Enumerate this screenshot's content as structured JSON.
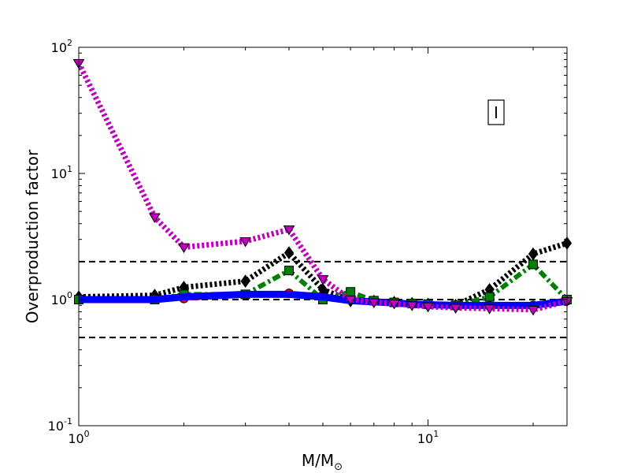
{
  "chart_data": {
    "type": "line",
    "title": "",
    "xlabel": "M/M",
    "xlabel_subscript": "⊙",
    "ylabel": "Overproduction factor",
    "xscale": "log",
    "yscale": "log",
    "xlim": [
      1,
      25
    ],
    "ylim": [
      0.1,
      100
    ],
    "x_ticks": [
      {
        "value": 1,
        "base": "10",
        "exp": "0"
      },
      {
        "value": 10,
        "base": "10",
        "exp": "1"
      }
    ],
    "y_ticks": [
      {
        "value": 0.1,
        "base": "10",
        "exp": "-1"
      },
      {
        "value": 1,
        "base": "10",
        "exp": "0"
      },
      {
        "value": 10,
        "base": "10",
        "exp": "1"
      },
      {
        "value": 100,
        "base": "10",
        "exp": "2"
      }
    ],
    "grid": false,
    "annotation": "I",
    "reference_lines": [
      0.5,
      1,
      2
    ],
    "series": [
      {
        "color": "#ff0000",
        "style": "dashed",
        "marker": "circle",
        "x": [
          1,
          1.65,
          2,
          3,
          4,
          5,
          6,
          7,
          8,
          9,
          10,
          12,
          15,
          20,
          25
        ],
        "y": [
          1.0,
          1.0,
          1.02,
          1.08,
          1.12,
          1.08,
          1.0,
          0.98,
          0.95,
          0.93,
          0.92,
          0.9,
          0.89,
          0.9,
          0.98
        ]
      },
      {
        "color": "#000000",
        "style": "dotted",
        "marker": "diamond",
        "x": [
          1,
          1.65,
          2,
          3,
          4,
          5,
          6,
          7,
          8,
          9,
          10,
          12,
          15,
          20,
          25
        ],
        "y": [
          1.05,
          1.08,
          1.25,
          1.4,
          2.35,
          1.2,
          0.98,
          0.97,
          0.95,
          0.93,
          0.92,
          0.9,
          1.2,
          2.3,
          2.8
        ]
      },
      {
        "color": "#008000",
        "style": "dashdot",
        "marker": "square",
        "x": [
          1,
          1.65,
          2,
          3,
          4,
          5,
          6,
          7,
          8,
          9,
          10,
          12,
          15,
          20,
          25
        ],
        "y": [
          1.0,
          1.0,
          1.1,
          1.1,
          1.7,
          1.0,
          1.15,
          0.98,
          0.95,
          0.93,
          0.92,
          0.9,
          1.05,
          1.9,
          1.0
        ]
      },
      {
        "color": "#0000ff",
        "style": "solid",
        "marker": "none",
        "x": [
          1,
          1.65,
          2,
          3,
          4,
          5,
          6,
          7,
          8,
          9,
          10,
          12,
          15,
          20,
          25
        ],
        "y": [
          1.0,
          1.0,
          1.05,
          1.1,
          1.1,
          1.05,
          0.98,
          0.96,
          0.94,
          0.92,
          0.91,
          0.9,
          0.9,
          0.9,
          0.97
        ]
      },
      {
        "color": "#bf00bf",
        "style": "dotted",
        "marker": "triangle-down",
        "x": [
          1,
          1.65,
          2,
          3,
          4,
          5,
          6,
          7,
          8,
          9,
          10,
          12,
          15,
          20,
          25
        ],
        "y": [
          75,
          4.5,
          2.6,
          2.9,
          3.6,
          1.45,
          1.0,
          0.95,
          0.93,
          0.9,
          0.88,
          0.86,
          0.85,
          0.83,
          0.97
        ]
      }
    ]
  }
}
